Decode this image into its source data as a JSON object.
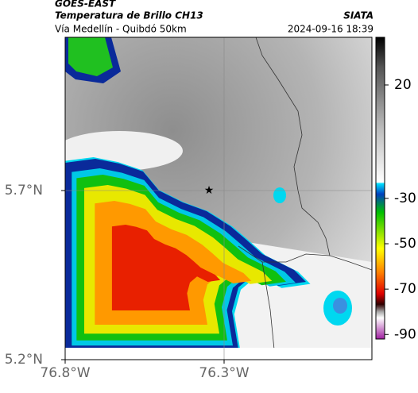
{
  "header": {
    "satellite": "GOES-EAST",
    "product": "Temperatura de Brillo CH13",
    "region": "Vía Medellín - Quibdó 50km",
    "source": "SIATA",
    "datetime": "2024-09-16 18:39"
  },
  "map": {
    "latlim": [
      5.2,
      6.153
    ],
    "lonlim": [
      -76.8,
      -75.835
    ],
    "latticks": [
      {
        "value": 5.7,
        "label": "5.7°N"
      },
      {
        "value": 5.2,
        "label": "5.2°N"
      }
    ],
    "lonticks": [
      {
        "value": -76.8,
        "label": "76.8°W"
      },
      {
        "value": -76.3,
        "label": "76.3°W"
      }
    ]
  },
  "colorbar": {
    "lim": [
      -92,
      41
    ],
    "ticks": [
      20,
      -30,
      -50,
      -70,
      -90
    ]
  }
}
